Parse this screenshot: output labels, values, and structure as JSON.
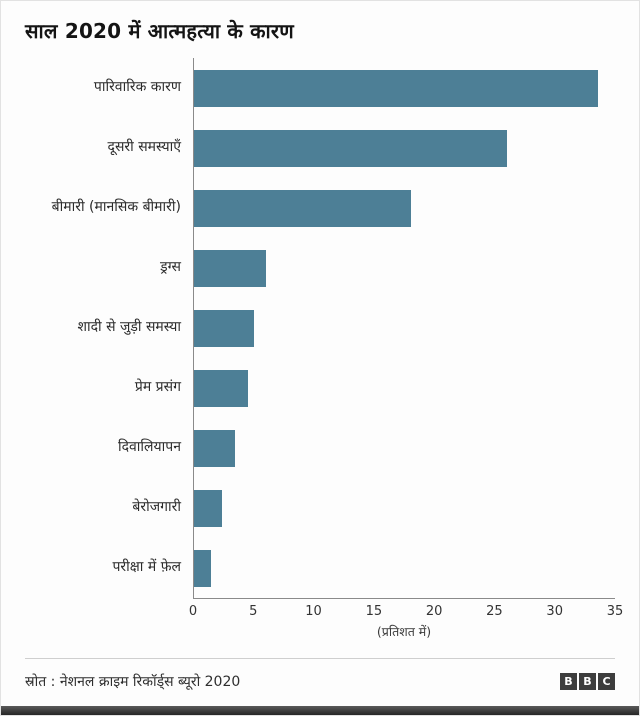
{
  "title": "साल 2020 में आत्महत्या के कारण",
  "chart_data": {
    "type": "bar",
    "orientation": "horizontal",
    "title": "साल 2020 में आत्महत्या के कारण",
    "categories": [
      "पारिवारिक कारण",
      "दूसरी समस्याएँ",
      "बीमारी (मानसिक बीमारी)",
      "ड्रग्स",
      "शादी से जुड़ी समस्या",
      "प्रेम प्रसंग",
      "दिवालियापन",
      "बेरोजगारी",
      "परीक्षा में फ़ेल"
    ],
    "values": [
      33.6,
      26,
      18,
      6,
      5,
      4.5,
      3.4,
      2.3,
      1.4
    ],
    "xlabel": "(प्रतिशत में)",
    "ylabel": "",
    "xlim": [
      0,
      35
    ],
    "xticks": [
      0,
      5,
      10,
      15,
      20,
      25,
      30,
      35
    ],
    "grid": false,
    "legend": "none",
    "bar_color": "#4d7f96"
  },
  "footer": {
    "source": "स्रोत : नेशनल क्राइम रिकॉर्ड्स ब्यूरो 2020",
    "logo_letters": [
      "B",
      "B",
      "C"
    ]
  }
}
